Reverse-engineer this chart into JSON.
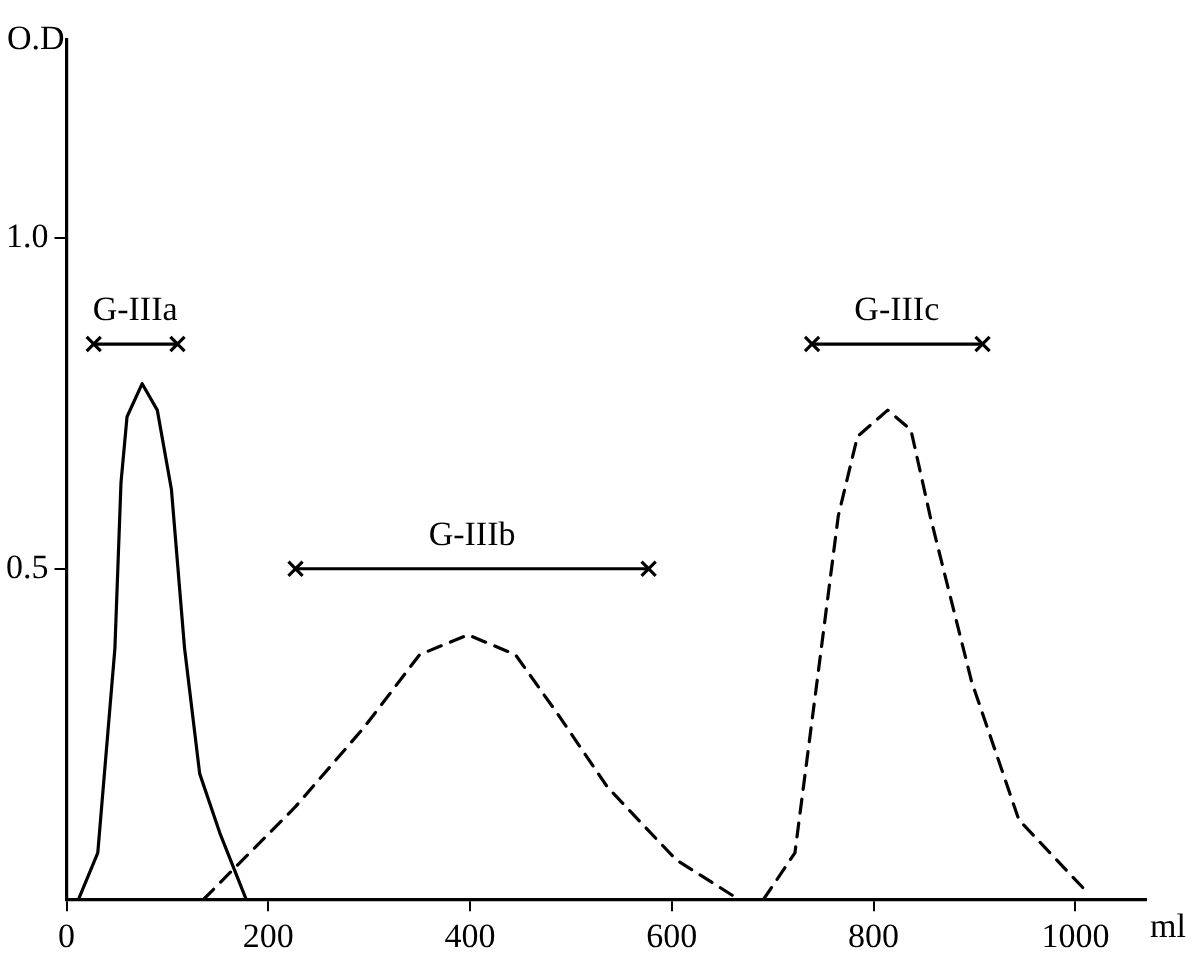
{
  "chart_data": {
    "type": "line",
    "xlabel": "ml",
    "ylabel": "O.D",
    "xlim": [
      0,
      1070
    ],
    "ylim": [
      0,
      1.3
    ],
    "xticks": [
      0,
      200,
      400,
      600,
      800,
      1000
    ],
    "yticks": [
      0.5,
      {
        "value": 1.0,
        "label": "1.0"
      }
    ],
    "grid": false,
    "legend": false,
    "marker": "none",
    "series": [
      {
        "color": "#000000",
        "line_style": "solid",
        "x": [
          12,
          31,
          48,
          54,
          60,
          75,
          90,
          104,
          117,
          132,
          152,
          178
        ],
        "values": [
          0,
          0.07,
          0.38,
          0.63,
          0.73,
          0.78,
          0.74,
          0.62,
          0.38,
          0.19,
          0.1,
          0
        ]
      },
      {
        "color": "#000000",
        "line_style": "dashed",
        "x": [
          136,
          227,
          295,
          350,
          398,
          445,
          487,
          536,
          604,
          666
        ],
        "values": [
          0,
          0.14,
          0.26,
          0.37,
          0.4,
          0.37,
          0.28,
          0.17,
          0.06,
          0
        ]
      },
      {
        "color": "#000000",
        "line_style": "dashed",
        "x": [
          691,
          722,
          744,
          765,
          784,
          814,
          837,
          856,
          897,
          944,
          1012
        ],
        "values": [
          0,
          0.07,
          0.33,
          0.58,
          0.7,
          0.74,
          0.71,
          0.58,
          0.33,
          0.12,
          0.01
        ]
      },
      {
        "color": "#000000",
        "line_style": "solid",
        "marker": "cross",
        "x": [
          27,
          110
        ],
        "values": [
          0.84,
          0.84
        ]
      },
      {
        "color": "#000000",
        "line_style": "solid",
        "marker": "cross",
        "x": [
          227,
          577
        ],
        "values": [
          0.5,
          0.5
        ]
      },
      {
        "color": "#000000",
        "line_style": "solid",
        "marker": "cross",
        "x": [
          739,
          908
        ],
        "values": [
          0.84,
          0.84
        ]
      }
    ],
    "annotations": [
      {
        "text": "G-IIIa",
        "x": 68,
        "y": 0.84
      },
      {
        "text": "G-IIIb",
        "x": 402,
        "y": 0.5
      },
      {
        "text": "G-IIIc",
        "x": 823,
        "y": 0.84
      }
    ]
  }
}
